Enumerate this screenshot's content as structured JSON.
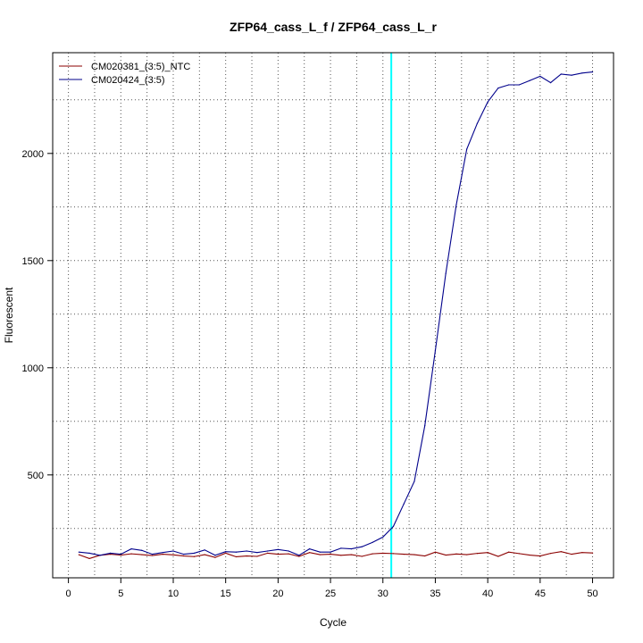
{
  "chart_data": {
    "type": "line",
    "title": "ZFP64_cass_L_f / ZFP64_cass_L_r",
    "xlabel": "Cycle",
    "ylabel": "Fluorescent",
    "xlim": [
      -1.5,
      52
    ],
    "ylim": [
      20,
      2470
    ],
    "x_ticks": [
      0,
      5,
      10,
      15,
      20,
      25,
      30,
      35,
      40,
      45,
      50
    ],
    "y_ticks": [
      500,
      1000,
      1500,
      2000
    ],
    "grid": true,
    "legend_position": "top-left",
    "threshold_cycle": 30.8,
    "threshold_color": "#00ffff",
    "x": [
      1,
      2,
      3,
      4,
      5,
      6,
      7,
      8,
      9,
      10,
      11,
      12,
      13,
      14,
      15,
      16,
      17,
      18,
      19,
      20,
      21,
      22,
      23,
      24,
      25,
      26,
      27,
      28,
      29,
      30,
      31,
      32,
      33,
      34,
      35,
      36,
      37,
      38,
      39,
      40,
      41,
      42,
      43,
      44,
      45,
      46,
      47,
      48,
      49,
      50
    ],
    "series": [
      {
        "name": "CM020381_(3:5)_NTC",
        "color": "#8b0000",
        "values": [
          128,
          110,
          125,
          130,
          126,
          132,
          128,
          124,
          130,
          127,
          122,
          119,
          128,
          115,
          135,
          118,
          122,
          120,
          135,
          130,
          132,
          120,
          138,
          128,
          130,
          125,
          128,
          120,
          132,
          135,
          133,
          130,
          128,
          122,
          140,
          126,
          131,
          128,
          134,
          138,
          120,
          140,
          133,
          126,
          122,
          134,
          142,
          130,
          138,
          136
        ]
      },
      {
        "name": "CM020424_(3:5)",
        "color": "#00008b",
        "values": [
          140,
          135,
          125,
          135,
          130,
          155,
          148,
          130,
          138,
          145,
          130,
          135,
          150,
          125,
          142,
          140,
          145,
          138,
          145,
          152,
          145,
          125,
          155,
          140,
          140,
          158,
          155,
          165,
          185,
          210,
          260,
          365,
          470,
          730,
          1080,
          1440,
          1760,
          2020,
          2140,
          2240,
          2305,
          2320,
          2320,
          2340,
          2360,
          2330,
          2370,
          2365,
          2375,
          2380
        ]
      }
    ]
  }
}
